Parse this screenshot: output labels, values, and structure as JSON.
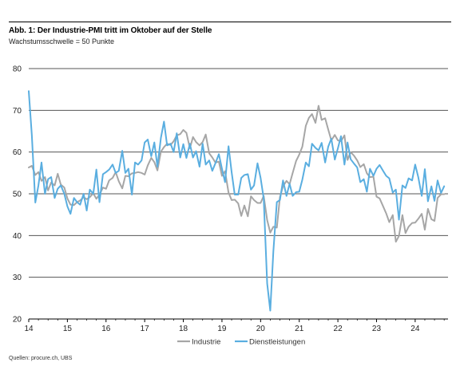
{
  "title": "Abb. 1: Der Industrie-PMI tritt im Oktober auf der Stelle",
  "subtitle": "Wachstumsschwelle = 50 Punkte",
  "source": "Quellen: procure.ch, UBS",
  "chart_data": {
    "type": "line",
    "title": "Abb. 1: Der Industrie-PMI tritt im Oktober auf der Stelle",
    "subtitle": "Wachstumsschwelle = 50 Punkte",
    "xlabel": "",
    "ylabel": "",
    "xlim": [
      2014.0,
      2024.85
    ],
    "ylim": [
      20,
      80
    ],
    "yticks": [
      20,
      30,
      40,
      50,
      60,
      70,
      80
    ],
    "xticks": [
      "14",
      "15",
      "16",
      "17",
      "18",
      "19",
      "20",
      "21",
      "22",
      "23",
      "24"
    ],
    "grid": "horizontal",
    "legend_position": "bottom-center",
    "series": [
      {
        "name": "Industrie",
        "color": "#a6a6a6",
        "points": [
          [
            2014.0,
            56.3
          ],
          [
            2014.08,
            56.7
          ],
          [
            2014.17,
            54.5
          ],
          [
            2014.25,
            55.2
          ],
          [
            2014.33,
            53.1
          ],
          [
            2014.42,
            54.0
          ],
          [
            2014.5,
            50.8
          ],
          [
            2014.58,
            52.7
          ],
          [
            2014.67,
            52.0
          ],
          [
            2014.75,
            54.8
          ],
          [
            2014.83,
            52.2
          ],
          [
            2014.92,
            51.5
          ],
          [
            2015.0,
            48.9
          ],
          [
            2015.08,
            47.4
          ],
          [
            2015.17,
            47.3
          ],
          [
            2015.25,
            48.0
          ],
          [
            2015.33,
            48.4
          ],
          [
            2015.42,
            49.2
          ],
          [
            2015.5,
            48.7
          ],
          [
            2015.58,
            49.2
          ],
          [
            2015.67,
            50.1
          ],
          [
            2015.75,
            48.8
          ],
          [
            2015.83,
            49.8
          ],
          [
            2015.92,
            51.5
          ],
          [
            2016.0,
            51.2
          ],
          [
            2016.08,
            53.2
          ],
          [
            2016.17,
            53.8
          ],
          [
            2016.25,
            55.2
          ],
          [
            2016.33,
            53.0
          ],
          [
            2016.42,
            51.3
          ],
          [
            2016.5,
            54.3
          ],
          [
            2016.58,
            54.2
          ],
          [
            2016.67,
            54.9
          ],
          [
            2016.75,
            55.0
          ],
          [
            2016.83,
            55.2
          ],
          [
            2016.92,
            55.0
          ],
          [
            2017.0,
            54.6
          ],
          [
            2017.08,
            56.8
          ],
          [
            2017.17,
            58.6
          ],
          [
            2017.25,
            57.6
          ],
          [
            2017.33,
            55.6
          ],
          [
            2017.42,
            60.1
          ],
          [
            2017.5,
            61.2
          ],
          [
            2017.58,
            62.0
          ],
          [
            2017.67,
            61.7
          ],
          [
            2017.75,
            62.6
          ],
          [
            2017.83,
            64.0
          ],
          [
            2017.92,
            64.3
          ],
          [
            2018.0,
            65.3
          ],
          [
            2018.08,
            64.6
          ],
          [
            2018.17,
            60.9
          ],
          [
            2018.25,
            63.6
          ],
          [
            2018.33,
            62.4
          ],
          [
            2018.42,
            61.6
          ],
          [
            2018.5,
            62.4
          ],
          [
            2018.58,
            64.2
          ],
          [
            2018.67,
            59.7
          ],
          [
            2018.75,
            58.7
          ],
          [
            2018.83,
            57.5
          ],
          [
            2018.92,
            57.7
          ],
          [
            2019.0,
            54.3
          ],
          [
            2019.08,
            55.4
          ],
          [
            2019.17,
            50.3
          ],
          [
            2019.25,
            48.5
          ],
          [
            2019.33,
            48.6
          ],
          [
            2019.42,
            47.7
          ],
          [
            2019.5,
            44.7
          ],
          [
            2019.58,
            47.2
          ],
          [
            2019.67,
            44.6
          ],
          [
            2019.75,
            49.4
          ],
          [
            2019.83,
            48.5
          ],
          [
            2019.92,
            47.8
          ],
          [
            2020.0,
            47.8
          ],
          [
            2020.08,
            49.5
          ],
          [
            2020.17,
            43.7
          ],
          [
            2020.25,
            40.7
          ],
          [
            2020.33,
            42.1
          ],
          [
            2020.42,
            41.9
          ],
          [
            2020.5,
            49.2
          ],
          [
            2020.58,
            51.8
          ],
          [
            2020.67,
            53.1
          ],
          [
            2020.75,
            52.3
          ],
          [
            2020.83,
            55.0
          ],
          [
            2020.92,
            57.9
          ],
          [
            2021.0,
            59.4
          ],
          [
            2021.08,
            61.3
          ],
          [
            2021.17,
            66.3
          ],
          [
            2021.25,
            68.2
          ],
          [
            2021.33,
            69.1
          ],
          [
            2021.42,
            67.0
          ],
          [
            2021.5,
            71.1
          ],
          [
            2021.58,
            67.7
          ],
          [
            2021.67,
            68.1
          ],
          [
            2021.75,
            65.4
          ],
          [
            2021.83,
            62.8
          ],
          [
            2021.92,
            64.1
          ],
          [
            2022.0,
            62.8
          ],
          [
            2022.08,
            62.6
          ],
          [
            2022.17,
            64.0
          ],
          [
            2022.25,
            58.1
          ],
          [
            2022.33,
            60.0
          ],
          [
            2022.42,
            59.1
          ],
          [
            2022.5,
            58.0
          ],
          [
            2022.58,
            56.4
          ],
          [
            2022.67,
            57.1
          ],
          [
            2022.75,
            54.9
          ],
          [
            2022.83,
            54.0
          ],
          [
            2022.92,
            54.1
          ],
          [
            2023.0,
            49.3
          ],
          [
            2023.08,
            48.9
          ],
          [
            2023.17,
            47.0
          ],
          [
            2023.25,
            45.3
          ],
          [
            2023.33,
            43.2
          ],
          [
            2023.42,
            44.9
          ],
          [
            2023.5,
            38.5
          ],
          [
            2023.58,
            39.9
          ],
          [
            2023.67,
            44.9
          ],
          [
            2023.75,
            40.6
          ],
          [
            2023.83,
            42.1
          ],
          [
            2023.92,
            43.0
          ],
          [
            2024.0,
            43.1
          ],
          [
            2024.08,
            44.0
          ],
          [
            2024.17,
            45.2
          ],
          [
            2024.25,
            41.4
          ],
          [
            2024.33,
            46.4
          ],
          [
            2024.42,
            43.9
          ],
          [
            2024.5,
            43.5
          ],
          [
            2024.58,
            49.0
          ],
          [
            2024.67,
            49.9
          ],
          [
            2024.75,
            49.9
          ]
        ]
      },
      {
        "name": "Dienstleistungen",
        "color": "#5aaee0",
        "points": [
          [
            2014.0,
            74.6
          ],
          [
            2014.08,
            64.0
          ],
          [
            2014.17,
            47.9
          ],
          [
            2014.25,
            52.0
          ],
          [
            2014.33,
            57.5
          ],
          [
            2014.42,
            50.0
          ],
          [
            2014.5,
            53.5
          ],
          [
            2014.58,
            54.0
          ],
          [
            2014.67,
            49.0
          ],
          [
            2014.75,
            51.2
          ],
          [
            2014.83,
            52.0
          ],
          [
            2014.92,
            50.0
          ],
          [
            2015.0,
            47.0
          ],
          [
            2015.08,
            45.2
          ],
          [
            2015.17,
            49.0
          ],
          [
            2015.25,
            48.0
          ],
          [
            2015.33,
            47.4
          ],
          [
            2015.42,
            50.0
          ],
          [
            2015.5,
            46.0
          ],
          [
            2015.58,
            51.0
          ],
          [
            2015.67,
            50.0
          ],
          [
            2015.75,
            55.8
          ],
          [
            2015.83,
            48.0
          ],
          [
            2015.92,
            54.7
          ],
          [
            2016.0,
            55.2
          ],
          [
            2016.08,
            55.8
          ],
          [
            2016.17,
            57.0
          ],
          [
            2016.25,
            55.0
          ],
          [
            2016.33,
            55.5
          ],
          [
            2016.42,
            60.3
          ],
          [
            2016.5,
            55.0
          ],
          [
            2016.58,
            56.0
          ],
          [
            2016.67,
            49.8
          ],
          [
            2016.75,
            57.5
          ],
          [
            2016.83,
            57.0
          ],
          [
            2016.92,
            58.0
          ],
          [
            2017.0,
            62.3
          ],
          [
            2017.08,
            63.0
          ],
          [
            2017.17,
            59.0
          ],
          [
            2017.25,
            62.3
          ],
          [
            2017.33,
            56.5
          ],
          [
            2017.42,
            63.4
          ],
          [
            2017.5,
            67.3
          ],
          [
            2017.58,
            61.6
          ],
          [
            2017.67,
            62.0
          ],
          [
            2017.75,
            60.0
          ],
          [
            2017.83,
            64.5
          ],
          [
            2017.92,
            58.7
          ],
          [
            2018.0,
            61.9
          ],
          [
            2018.08,
            58.6
          ],
          [
            2018.17,
            62.0
          ],
          [
            2018.25,
            58.7
          ],
          [
            2018.33,
            60.2
          ],
          [
            2018.42,
            56.5
          ],
          [
            2018.5,
            62.0
          ],
          [
            2018.58,
            57.0
          ],
          [
            2018.67,
            58.0
          ],
          [
            2018.75,
            55.5
          ],
          [
            2018.83,
            57.3
          ],
          [
            2018.92,
            59.5
          ],
          [
            2019.0,
            56.0
          ],
          [
            2019.08,
            52.8
          ],
          [
            2019.17,
            61.4
          ],
          [
            2019.25,
            55.2
          ],
          [
            2019.33,
            49.8
          ],
          [
            2019.42,
            49.8
          ],
          [
            2019.5,
            53.8
          ],
          [
            2019.58,
            54.5
          ],
          [
            2019.67,
            54.7
          ],
          [
            2019.75,
            51.0
          ],
          [
            2019.83,
            52.0
          ],
          [
            2019.92,
            57.3
          ],
          [
            2020.0,
            53.8
          ],
          [
            2020.08,
            48.9
          ],
          [
            2020.17,
            28.5
          ],
          [
            2020.25,
            22.0
          ],
          [
            2020.33,
            36.2
          ],
          [
            2020.42,
            48.0
          ],
          [
            2020.5,
            48.5
          ],
          [
            2020.58,
            53.2
          ],
          [
            2020.67,
            49.5
          ],
          [
            2020.75,
            52.4
          ],
          [
            2020.83,
            49.5
          ],
          [
            2020.92,
            50.4
          ],
          [
            2021.0,
            50.5
          ],
          [
            2021.08,
            53.4
          ],
          [
            2021.17,
            57.5
          ],
          [
            2021.25,
            56.6
          ],
          [
            2021.33,
            62.0
          ],
          [
            2021.42,
            61.0
          ],
          [
            2021.5,
            60.4
          ],
          [
            2021.58,
            62.2
          ],
          [
            2021.67,
            57.5
          ],
          [
            2021.75,
            61.3
          ],
          [
            2021.83,
            63.2
          ],
          [
            2021.92,
            58.2
          ],
          [
            2022.0,
            60.9
          ],
          [
            2022.08,
            63.8
          ],
          [
            2022.17,
            57.0
          ],
          [
            2022.25,
            62.3
          ],
          [
            2022.33,
            58.3
          ],
          [
            2022.42,
            57.2
          ],
          [
            2022.5,
            56.3
          ],
          [
            2022.58,
            52.8
          ],
          [
            2022.67,
            53.5
          ],
          [
            2022.75,
            50.5
          ],
          [
            2022.83,
            56.0
          ],
          [
            2022.92,
            54.3
          ],
          [
            2023.0,
            56.0
          ],
          [
            2023.08,
            56.9
          ],
          [
            2023.17,
            55.5
          ],
          [
            2023.25,
            54.3
          ],
          [
            2023.33,
            53.7
          ],
          [
            2023.42,
            50.3
          ],
          [
            2023.5,
            51.0
          ],
          [
            2023.58,
            43.8
          ],
          [
            2023.67,
            52.0
          ],
          [
            2023.75,
            51.4
          ],
          [
            2023.83,
            53.7
          ],
          [
            2023.92,
            53.2
          ],
          [
            2024.0,
            57.0
          ],
          [
            2024.08,
            54.0
          ],
          [
            2024.17,
            49.5
          ],
          [
            2024.25,
            55.9
          ],
          [
            2024.33,
            48.2
          ],
          [
            2024.42,
            51.8
          ],
          [
            2024.5,
            48.3
          ],
          [
            2024.58,
            53.2
          ],
          [
            2024.67,
            50.2
          ],
          [
            2024.75,
            51.8
          ]
        ]
      }
    ]
  }
}
